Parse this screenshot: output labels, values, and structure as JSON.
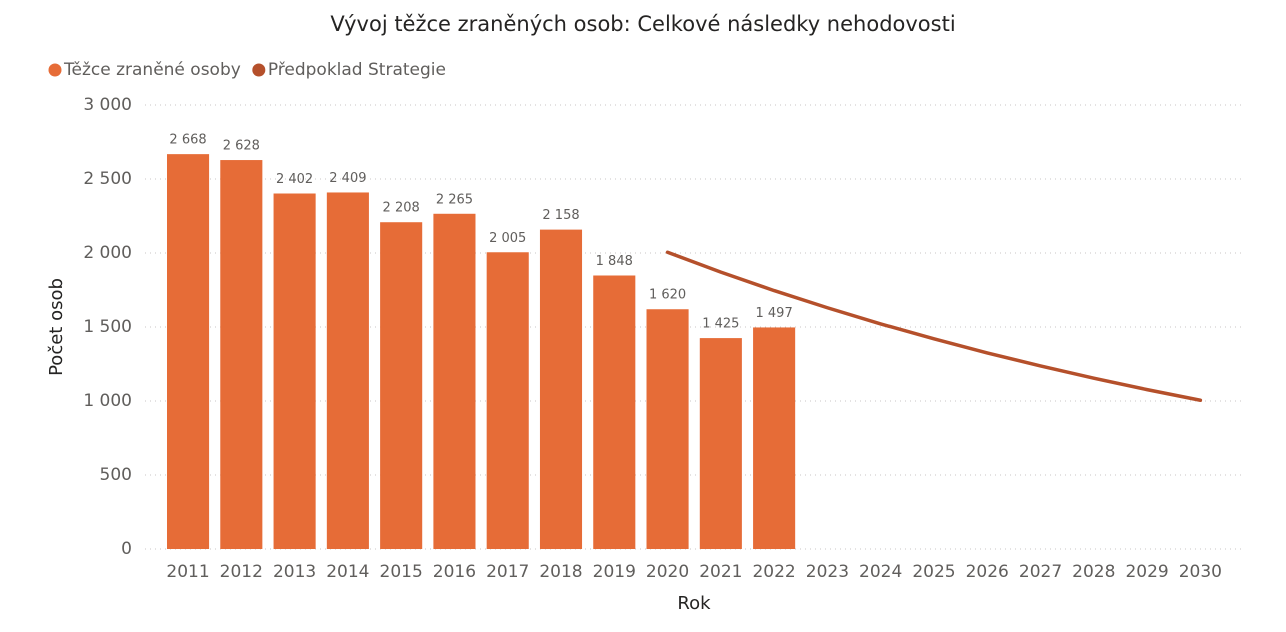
{
  "chart_data": {
    "type": "bar",
    "title": "Vývoj těžce zraněných osob: Celkové následky nehodovosti",
    "x_label": "Rok",
    "y_label": "Počet osob",
    "categories": [
      "2011",
      "2012",
      "2013",
      "2014",
      "2015",
      "2016",
      "2017",
      "2018",
      "2019",
      "2020",
      "2021",
      "2022",
      "2023",
      "2024",
      "2025",
      "2026",
      "2027",
      "2028",
      "2029",
      "2030"
    ],
    "series": [
      {
        "name": "Těžce zraněné osoby",
        "type": "bar",
        "color": "#E66C37",
        "values": [
          2668,
          2628,
          2402,
          2409,
          2208,
          2265,
          2005,
          2158,
          1848,
          1620,
          1425,
          1497,
          null,
          null,
          null,
          null,
          null,
          null,
          null,
          null
        ],
        "value_labels": [
          "2 668",
          "2 628",
          "2 402",
          "2 409",
          "2 208",
          "2 265",
          "2 005",
          "2 158",
          "1 848",
          "1 620",
          "1 425",
          "1 497",
          null,
          null,
          null,
          null,
          null,
          null,
          null,
          null
        ]
      },
      {
        "name": "Předpoklad Strategie",
        "type": "line",
        "color": "#B5502B",
        "values": [
          null,
          null,
          null,
          null,
          null,
          null,
          null,
          null,
          null,
          2005,
          1871,
          1746,
          1630,
          1521,
          1420,
          1325,
          1237,
          1154,
          1077,
          1005
        ]
      }
    ],
    "ylim": [
      0,
      3000
    ],
    "yticks": [
      0,
      500,
      {
        "value": 1000,
        "label": "1 000"
      },
      {
        "value": 1500,
        "label": "1 500"
      },
      {
        "value": 2000,
        "label": "2 000"
      },
      {
        "value": 2500,
        "label": "2 500"
      },
      {
        "value": 3000,
        "label": "3 000"
      }
    ],
    "grid": true,
    "legend": "top-left"
  }
}
